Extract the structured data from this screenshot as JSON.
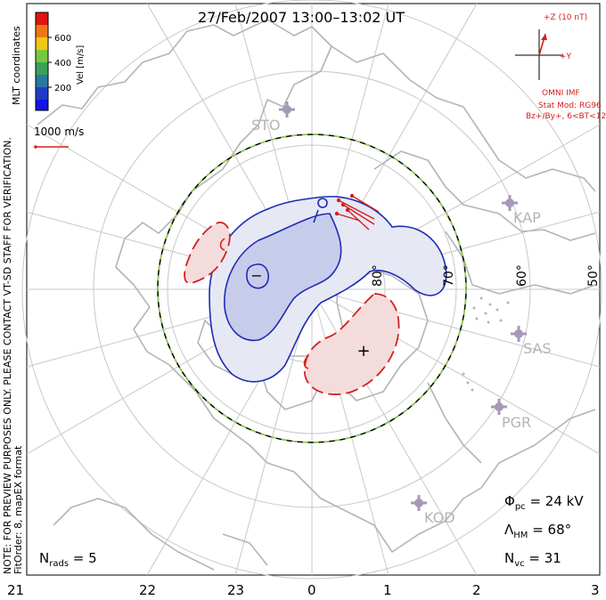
{
  "title": "27/Feb/2007  13:00–13:02 UT",
  "side_note_1": "NOTE: FOR PREVIEW PURPOSES ONLY. PLEASE CONTACT VT-SD STAFF FOR VERIFICATION.",
  "side_note_2": "FitOrder: 8, mapEX format",
  "mlt_coordinates": "MLT coordinates",
  "colorbar": {
    "label": "Vel [m/s]",
    "ticks": [
      "600",
      "400",
      "200"
    ],
    "colors": [
      "#e01414",
      "#f07814",
      "#f0c814",
      "#78c83c",
      "#3ca05a",
      "#2878a0",
      "#1e3cc8",
      "#1414e6"
    ]
  },
  "vector_scale": "1000 m/s",
  "imf": {
    "z_label": "+Z (10 nT)",
    "y_label": "+Y",
    "source": "OMNI IMF",
    "stat_mod": "Stat Mod: RG96",
    "bin": "Bz+/By+, 6<BT<12"
  },
  "latitude_labels": [
    "80°",
    "70°",
    "60°",
    "50°"
  ],
  "stations": [
    "STO",
    "KAP",
    "SAS",
    "PGR",
    "KOD"
  ],
  "mlt_ticks": [
    "21",
    "22",
    "23",
    "0",
    "1",
    "2",
    "3"
  ],
  "potential_marks": {
    "min": "−",
    "max": "+"
  },
  "stats": {
    "phi_symbol": "Φ",
    "phi_sub": "pc",
    "phi_value": " = 24 kV",
    "lambda_symbol": "Λ",
    "lambda_sub": "HM",
    "lambda_value": " = 68°",
    "nvc_symbol": "N",
    "nvc_sub": "vc",
    "nvc_value": " = 31",
    "nrads_symbol": "N",
    "nrads_sub": "rads",
    "nrads_value": " = 5"
  },
  "colors": {
    "negative_cell": "#1e2cb4",
    "positive_cell": "#d42020",
    "hmb_dash": "#8cd24a",
    "grid": "#c8c8c8",
    "coast": "#b4b4b4"
  }
}
